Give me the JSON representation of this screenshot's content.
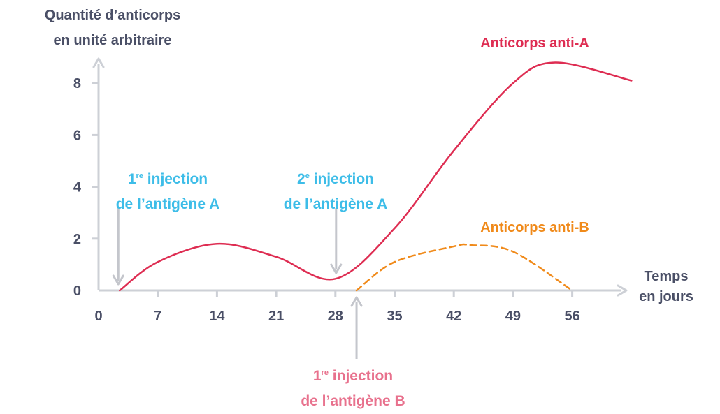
{
  "chart_data": {
    "type": "line",
    "ylabel_line1": "Quantité d’anticorps",
    "ylabel_line2": "en unité arbitraire",
    "xlabel_line1": "Temps",
    "xlabel_line2": "en jours",
    "xlim": [
      0,
      63
    ],
    "ylim": [
      0,
      9
    ],
    "x_ticks": [
      0,
      7,
      14,
      21,
      28,
      35,
      42,
      49,
      56
    ],
    "y_ticks": [
      0,
      2,
      4,
      6,
      8
    ],
    "series": [
      {
        "name": "Anticorps anti-A",
        "color": "#de2d52",
        "style": "solid",
        "x": [
          2.5,
          7,
          14,
          21,
          28,
          35,
          42,
          49,
          54,
          63
        ],
        "y": [
          0,
          1.1,
          1.8,
          1.3,
          0.45,
          2.4,
          5.4,
          8.0,
          8.8,
          8.1
        ]
      },
      {
        "name": "Anticorps anti-B",
        "color": "#f08a1a",
        "style": "dashed",
        "x": [
          30.5,
          35,
          42,
          44,
          49,
          56
        ],
        "y": [
          0,
          1.1,
          1.7,
          1.75,
          1.5,
          0
        ]
      }
    ],
    "annotations": [
      {
        "x": 2.5,
        "color": "#3dbde8",
        "line1_prefix": "1",
        "line1_sup": "re",
        "line1_suffix": " injection",
        "line2": "de l’antigène A"
      },
      {
        "x": 28,
        "color": "#3dbde8",
        "line1_prefix": "2",
        "line1_sup": "e",
        "line1_suffix": " injection",
        "line2": "de l’antigène A"
      },
      {
        "x": 30.5,
        "color": "#e8718d",
        "line1_prefix": "1",
        "line1_sup": "re",
        "line1_suffix": " injection",
        "line2": "de l’antigène B"
      }
    ],
    "colors": {
      "axis": "#cdd0d6",
      "text": "#4a4f66",
      "arrow": "#c4c6cc"
    }
  }
}
